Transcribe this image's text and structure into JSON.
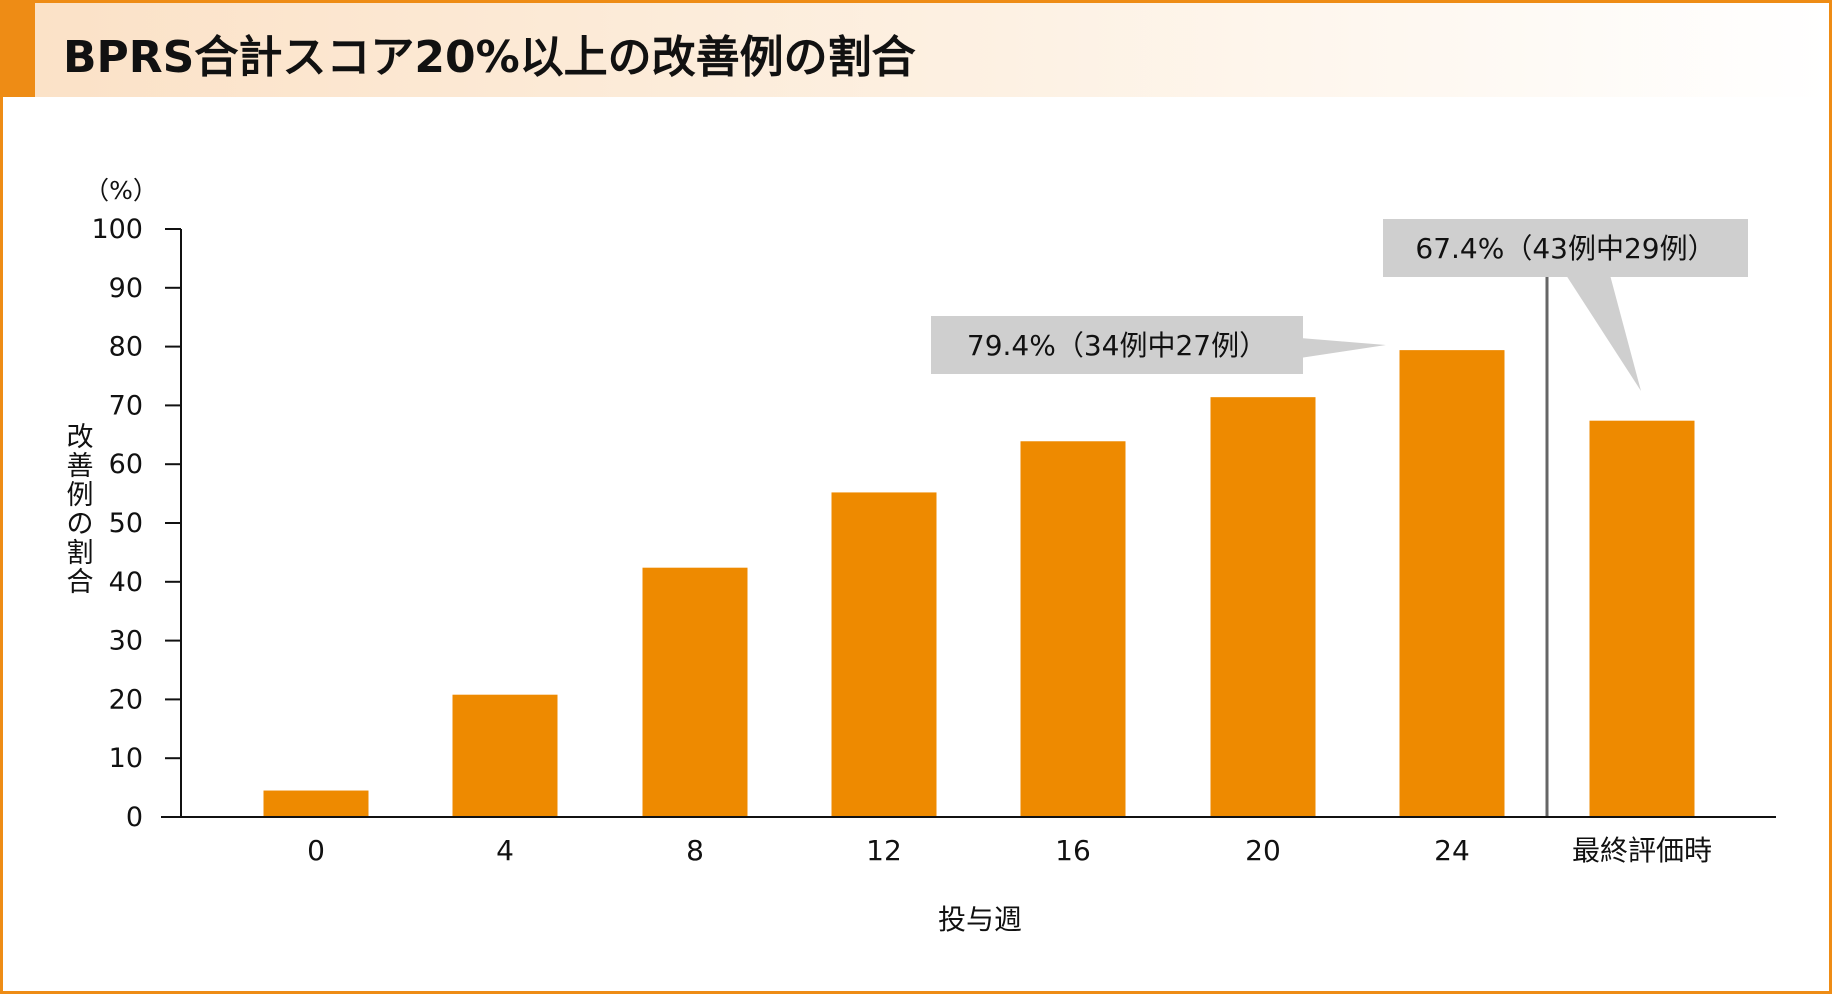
{
  "chart_data": {
    "type": "bar",
    "title": "BPRS合計スコア20%以上の改善例の割合",
    "xlabel": "投与週",
    "ylabel": "改善例の割合",
    "yunit": "（%）",
    "ylim": [
      0,
      100
    ],
    "yticks": [
      "100",
      "90",
      "80",
      "70",
      "60",
      "50",
      "40",
      "30",
      "20",
      "10",
      "0"
    ],
    "categories": [
      "0",
      "4",
      "8",
      "12",
      "16",
      "20",
      "24",
      "最終評価時"
    ],
    "values": [
      4.5,
      20.8,
      42.4,
      55.2,
      63.9,
      71.4,
      79.4,
      67.4
    ],
    "bar_color": "#ee8a00",
    "annotations": [
      {
        "text": "79.4%（34例中27例）",
        "category": "24"
      },
      {
        "text": "67.4%（43例中29例）",
        "category": "最終評価時"
      }
    ],
    "separator_after_category": "24",
    "grid": false
  }
}
